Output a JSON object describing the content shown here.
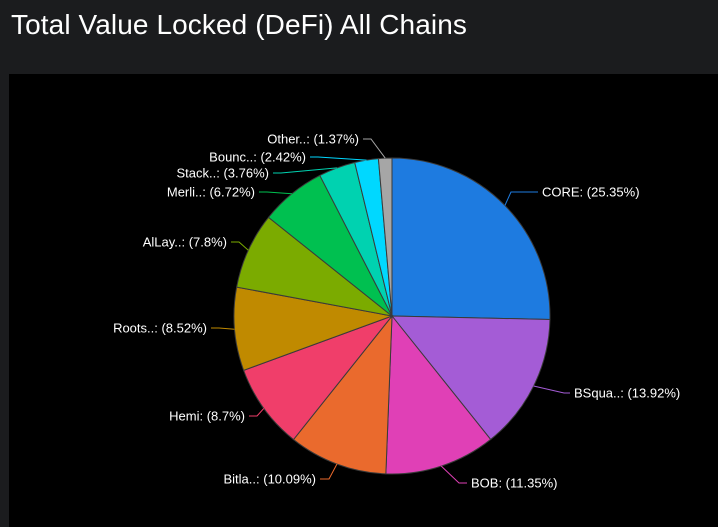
{
  "page": {
    "title": "Total Value Locked (DeFi) All Chains"
  },
  "chart_data": {
    "type": "pie",
    "title": "Total Value Locked (DeFi) All Chains",
    "start_angle_deg": 0,
    "direction": "clockwise",
    "slices": [
      {
        "label": "CORE: (25.35%)",
        "value": 25.35,
        "color": "#1e7be0"
      },
      {
        "label": "BSqua..: (13.92%)",
        "value": 13.92,
        "color": "#a45cd6"
      },
      {
        "label": "BOB: (11.35%)",
        "value": 11.35,
        "color": "#e040b6"
      },
      {
        "label": "Bitla..: (10.09%)",
        "value": 10.09,
        "color": "#ea6a2d"
      },
      {
        "label": "Hemi: (8.7%)",
        "value": 8.7,
        "color": "#f03e6a"
      },
      {
        "label": "Roots..: (8.52%)",
        "value": 8.52,
        "color": "#c08a00"
      },
      {
        "label": "AlLay..: (7.8%)",
        "value": 7.8,
        "color": "#7bab00"
      },
      {
        "label": "Merli..: (6.72%)",
        "value": 6.72,
        "color": "#00c050"
      },
      {
        "label": "Stack..: (3.76%)",
        "value": 3.76,
        "color": "#00d2b0"
      },
      {
        "label": "Bounc..: (2.42%)",
        "value": 2.42,
        "color": "#00d8ff"
      },
      {
        "label": "Other..: (1.37%)",
        "value": 1.37,
        "color": "#a6a6a6"
      }
    ]
  }
}
